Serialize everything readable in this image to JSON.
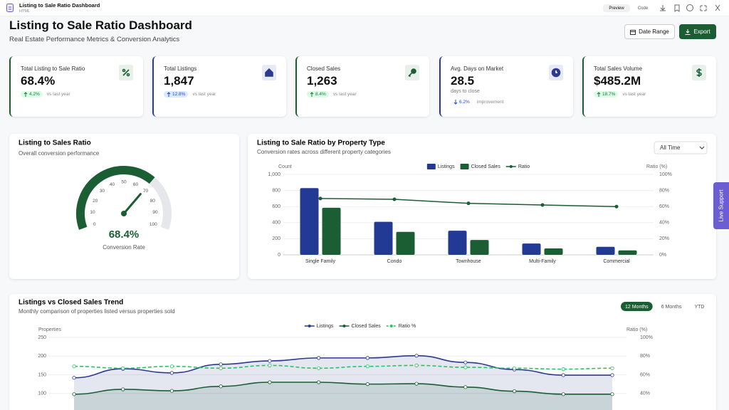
{
  "app_bar": {
    "title": "Listing to Sale Ratio Dashboard",
    "subtitle": "HTML",
    "preview": "Preview",
    "code": "Code"
  },
  "header": {
    "title": "Listing to Sale Ratio Dashboard",
    "subtitle": "Real Estate Performance Metrics & Conversion Analytics",
    "date_range": "Date Range",
    "export": "Export"
  },
  "kpis": [
    {
      "label": "Total Listing to Sale Ratio",
      "value": "68.4%",
      "change": "4.2%",
      "note": "vs last year",
      "trend": "up",
      "accent": "#1b5e34"
    },
    {
      "label": "Total Listings",
      "value": "1,847",
      "change": "12.8%",
      "note": "vs last year",
      "trend": "up",
      "accent": "#2e3a8c"
    },
    {
      "label": "Closed Sales",
      "value": "1,263",
      "change": "8.4%",
      "note": "vs last year",
      "trend": "up",
      "accent": "#1b5e34"
    },
    {
      "label": "Avg. Days on Market",
      "value": "28.5",
      "detail": "days to close",
      "change": "6.2%",
      "note": "improvement",
      "trend": "down",
      "accent": "#2e3a8c"
    },
    {
      "label": "Total Sales Volume",
      "value": "$485.2M",
      "change": "18.7%",
      "note": "vs last year",
      "trend": "up",
      "accent": "#1b5e34"
    }
  ],
  "chart_data": [
    {
      "type": "gauge",
      "title": "Listing to Sales Ratio",
      "subtitle": "Overall conversion performance",
      "value": 68.4,
      "value_label": "68.4%",
      "caption": "Conversion Rate",
      "lim": [
        0,
        100
      ],
      "ticks": [
        0,
        10,
        20,
        30,
        40,
        50,
        60,
        70,
        80,
        90,
        100
      ],
      "color": "#1b5e34"
    },
    {
      "type": "bar",
      "title": "Listing to Sale Ratio by Property Type",
      "subtitle": "Conversion rates across different property categories",
      "filter": "All Time",
      "ylabel": "Count",
      "y2label": "Ratio (%)",
      "categories": [
        "Single Family",
        "Condo",
        "Townhouse",
        "Multi-Family",
        "Commercial"
      ],
      "series": [
        {
          "name": "Listings",
          "color": "#233a95",
          "values": [
            830,
            410,
            300,
            140,
            100
          ]
        },
        {
          "name": "Closed Sales",
          "color": "#1b5e34",
          "values": [
            585,
            285,
            185,
            80,
            55
          ]
        },
        {
          "name": "Ratio",
          "color": "#1b5e34",
          "type": "line",
          "axis": "y2",
          "values": [
            70,
            69,
            64,
            62,
            60
          ]
        }
      ],
      "ylim": [
        0,
        1000
      ],
      "yticks": [
        0,
        200,
        400,
        600,
        800,
        {
          "value": 1000,
          "label": "1,000"
        }
      ],
      "y2lim": [
        0,
        100
      ],
      "y2ticks": [
        {
          "value": 0,
          "label": "0%"
        },
        {
          "value": 20,
          "label": "20%"
        },
        {
          "value": 40,
          "label": "40%"
        },
        {
          "value": 60,
          "label": "60%"
        },
        {
          "value": 80,
          "label": "80%"
        },
        {
          "value": 100,
          "label": "100%"
        }
      ],
      "grid": true
    },
    {
      "type": "line",
      "title": "Listings vs Closed Sales Trend",
      "subtitle": "Monthly comparison of properties listed versus properties sold",
      "tabs": [
        "12 Months",
        "6 Months",
        "YTD"
      ],
      "active_tab": 0,
      "ylabel": "Properties",
      "y2label": "Ratio (%)",
      "categories": [
        null,
        null,
        null,
        null,
        null,
        null,
        null,
        null,
        null,
        null,
        null,
        null
      ],
      "series": [
        {
          "name": "Listings",
          "color": "#2e3a8c",
          "fill": true,
          "values": [
            142,
            166,
            155,
            178,
            187,
            195,
            195,
            201,
            183,
            164,
            149,
            149
          ]
        },
        {
          "name": "Closed Sales",
          "color": "#1b5e34",
          "fill": true,
          "values": [
            98,
            111,
            107,
            119,
            130,
            130,
            125,
            126,
            117,
            106,
            98,
            98
          ]
        },
        {
          "name": "Ratio %",
          "color": "#22c55e",
          "dashed": true,
          "axis": "y2",
          "values": [
            69,
            67,
            69,
            67,
            70,
            67,
            69,
            70,
            68,
            67,
            66,
            67
          ]
        }
      ],
      "ylim": [
        50,
        250
      ],
      "yticks": [
        100,
        150,
        200,
        250
      ],
      "y2lim": [
        20,
        100
      ],
      "y2ticks": [
        {
          "value": 40,
          "label": "40%"
        },
        {
          "value": 60,
          "label": "60%"
        },
        {
          "value": 80,
          "label": "80%"
        },
        {
          "value": 100,
          "label": "100%"
        }
      ],
      "grid": true
    }
  ],
  "live_support": "Live Support"
}
